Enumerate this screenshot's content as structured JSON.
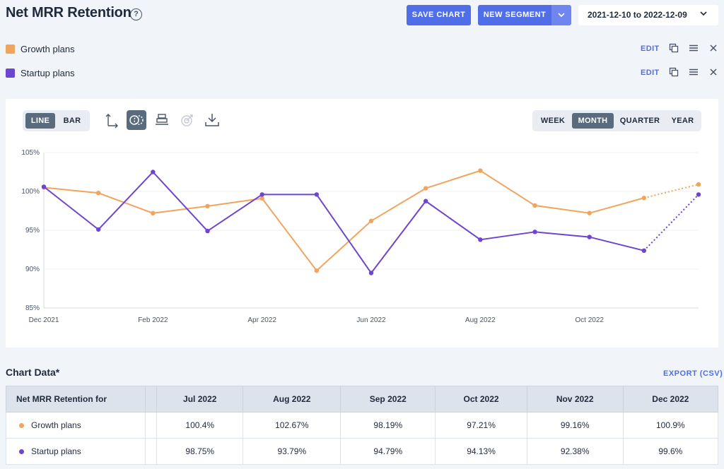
{
  "header": {
    "title": "Net MRR Retention",
    "help": "?",
    "save_label": "SAVE CHART",
    "new_segment_label": "NEW SEGMENT",
    "date_range": "2021-12-10 to 2022-12-09"
  },
  "segments": [
    {
      "name": "Growth plans",
      "color": "#f0a45c",
      "edit": "EDIT"
    },
    {
      "name": "Startup plans",
      "color": "#6e45d0",
      "edit": "EDIT"
    }
  ],
  "toolbar": {
    "chart_types": [
      "LINE",
      "BAR"
    ],
    "active_chart_type": "LINE",
    "tools": [
      "axis-icon",
      "compare-icon",
      "stack-icon",
      "goal-icon",
      "download-icon"
    ],
    "periods": [
      "WEEK",
      "MONTH",
      "QUARTER",
      "YEAR"
    ],
    "active_period": "MONTH"
  },
  "chart_data": {
    "type": "line",
    "x": [
      "Dec 2021",
      "Jan 2022",
      "Feb 2022",
      "Mar 2022",
      "Apr 2022",
      "May 2022",
      "Jun 2022",
      "Jul 2022",
      "Aug 2022",
      "Sep 2022",
      "Oct 2022",
      "Nov 2022",
      "Dec 2022"
    ],
    "x_tick_labels": [
      "Dec 2021",
      "Feb 2022",
      "Apr 2022",
      "Jun 2022",
      "Aug 2022",
      "Oct 2022"
    ],
    "y_tick_labels": [
      "105%",
      "100%",
      "95%",
      "90%",
      "85%"
    ],
    "ylim": [
      85,
      105
    ],
    "grid": true,
    "last_point_dotted": true,
    "series": [
      {
        "name": "Growth plans",
        "color": "#f0a45c",
        "values": [
          100.5,
          99.8,
          97.2,
          98.1,
          99.1,
          89.8,
          96.2,
          100.4,
          102.67,
          98.19,
          97.21,
          99.16,
          100.9
        ]
      },
      {
        "name": "Startup plans",
        "color": "#6e45d0",
        "values": [
          100.6,
          95.1,
          102.5,
          94.9,
          99.6,
          99.6,
          89.5,
          98.75,
          93.79,
          94.79,
          94.13,
          92.38,
          99.6
        ]
      }
    ]
  },
  "table": {
    "section_title": "Chart Data*",
    "export_label": "EXPORT (CSV)",
    "header_first": "Net MRR Retention for",
    "columns": [
      "Jul 2022",
      "Aug 2022",
      "Sep 2022",
      "Oct 2022",
      "Nov 2022",
      "Dec 2022"
    ],
    "rows": [
      {
        "name": "Growth plans",
        "color": "#f0a45c",
        "values": [
          "100.4%",
          "102.67%",
          "98.19%",
          "97.21%",
          "99.16%",
          "100.9%"
        ]
      },
      {
        "name": "Startup plans",
        "color": "#6e45d0",
        "values": [
          "98.75%",
          "93.79%",
          "94.79%",
          "94.13%",
          "92.38%",
          "99.6%"
        ]
      }
    ]
  }
}
